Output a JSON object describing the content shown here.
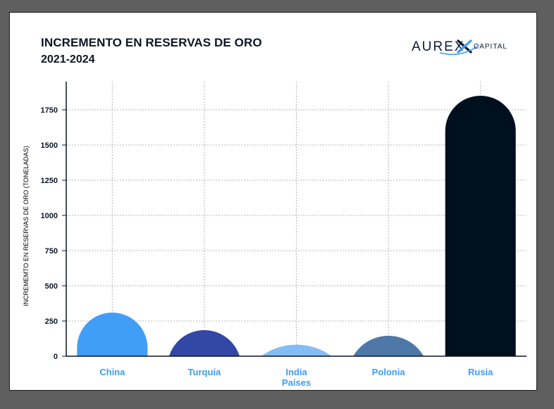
{
  "brand": {
    "name": "AUREX",
    "tagline": "CAPITAL",
    "colors": {
      "dark": "#0d1a35",
      "accent": "#3d9df5"
    }
  },
  "chart_data": {
    "type": "bar",
    "title": "INCREMENTO EN RESERVAS DE ORO",
    "subtitle": "2021-2024",
    "xlabel": "Países",
    "ylabel": "INCREMEMTO EN RESERVAS DE ORO (TONELADAS)",
    "categories": [
      "China",
      "Turquía",
      "India",
      "Polonia",
      "Rusia"
    ],
    "values": [
      310,
      185,
      82,
      145,
      1850
    ],
    "colors": [
      "#409ef7",
      "#3347a6",
      "#84bdf5",
      "#4d78a8",
      "#000f1e"
    ],
    "yticks": [
      0,
      250,
      500,
      750,
      1000,
      1250,
      1500,
      1750
    ],
    "ylim": [
      0,
      1950
    ],
    "grid": true,
    "legend": "none"
  }
}
